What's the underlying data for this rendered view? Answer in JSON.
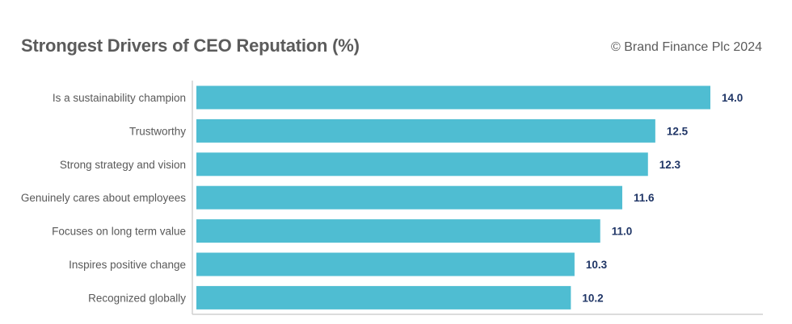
{
  "header": {
    "title": "Strongest Drivers of CEO Reputation (%)",
    "copyright": "© Brand Finance Plc 2024"
  },
  "colors": {
    "bar": "#4fbdd2",
    "value_label": "#1f3566",
    "axis": "#d0d0d0"
  },
  "chart_data": {
    "type": "bar",
    "orientation": "horizontal",
    "title": "Strongest Drivers of CEO Reputation (%)",
    "categories": [
      "Is a sustainability champion",
      "Trustworthy",
      "Strong strategy and vision",
      "Genuinely cares about employees",
      "Focuses on long term value",
      "Inspires positive change",
      "Recognized globally"
    ],
    "values": [
      14.0,
      12.5,
      12.3,
      11.6,
      11.0,
      10.3,
      10.2
    ],
    "value_labels": [
      "14.0",
      "12.5",
      "12.3",
      "11.6",
      "11.0",
      "10.3",
      "10.2"
    ],
    "xlim": [
      0,
      14.0
    ],
    "grid": false,
    "legend": "none"
  }
}
